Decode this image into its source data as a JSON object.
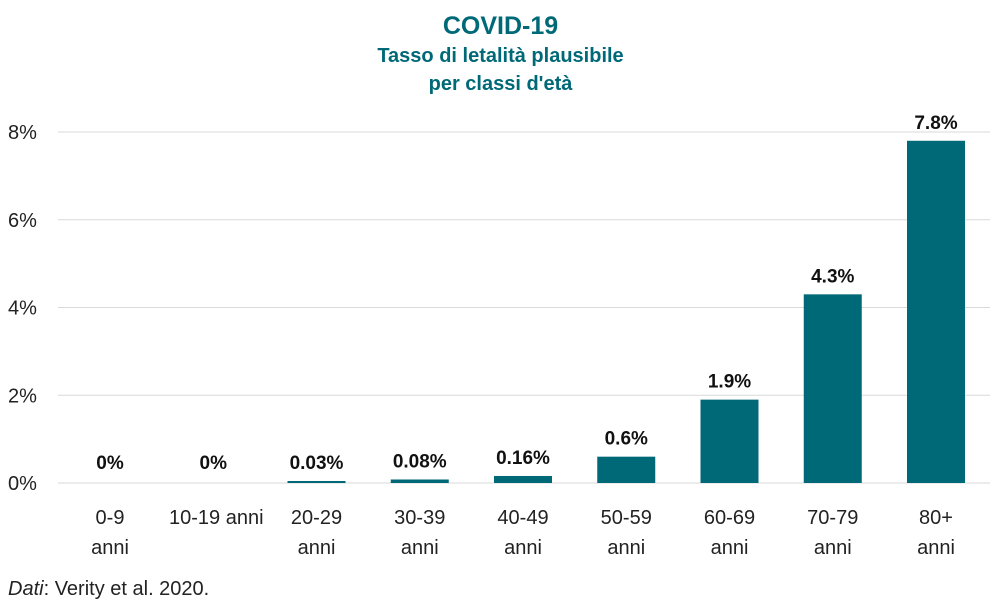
{
  "chart_data": {
    "type": "bar",
    "title": "COVID-19",
    "subtitle_lines": [
      "Tasso di letalità plausibile",
      "per classi d'età"
    ],
    "categories": [
      [
        "0-9",
        "anni"
      ],
      [
        "10-19 anni"
      ],
      [
        "20-29",
        "anni"
      ],
      [
        "30-39",
        "anni"
      ],
      [
        "40-49",
        "anni"
      ],
      [
        "50-59",
        "anni"
      ],
      [
        "60-69",
        "anni"
      ],
      [
        "70-79",
        "anni"
      ],
      [
        "80+",
        "anni"
      ]
    ],
    "values": [
      0,
      0,
      0.03,
      0.08,
      0.16,
      0.6,
      1.9,
      4.3,
      7.8
    ],
    "data_labels": [
      "0%",
      "0%",
      "0.03%",
      "0.08%",
      "0.16%",
      "0.6%",
      "1.9%",
      "4.3%",
      "7.8%"
    ],
    "ylim": [
      0,
      8
    ],
    "yticks": [
      0,
      2,
      4,
      6,
      8
    ],
    "ytick_labels": [
      "0%",
      "2%",
      "4%",
      "6%",
      "8%"
    ],
    "grid": true,
    "bar_color": "#006978",
    "grid_color": "#d9d9d9",
    "title_color": "#006978"
  },
  "source": {
    "label": "Dati",
    "text": ": Verity et al. 2020."
  }
}
